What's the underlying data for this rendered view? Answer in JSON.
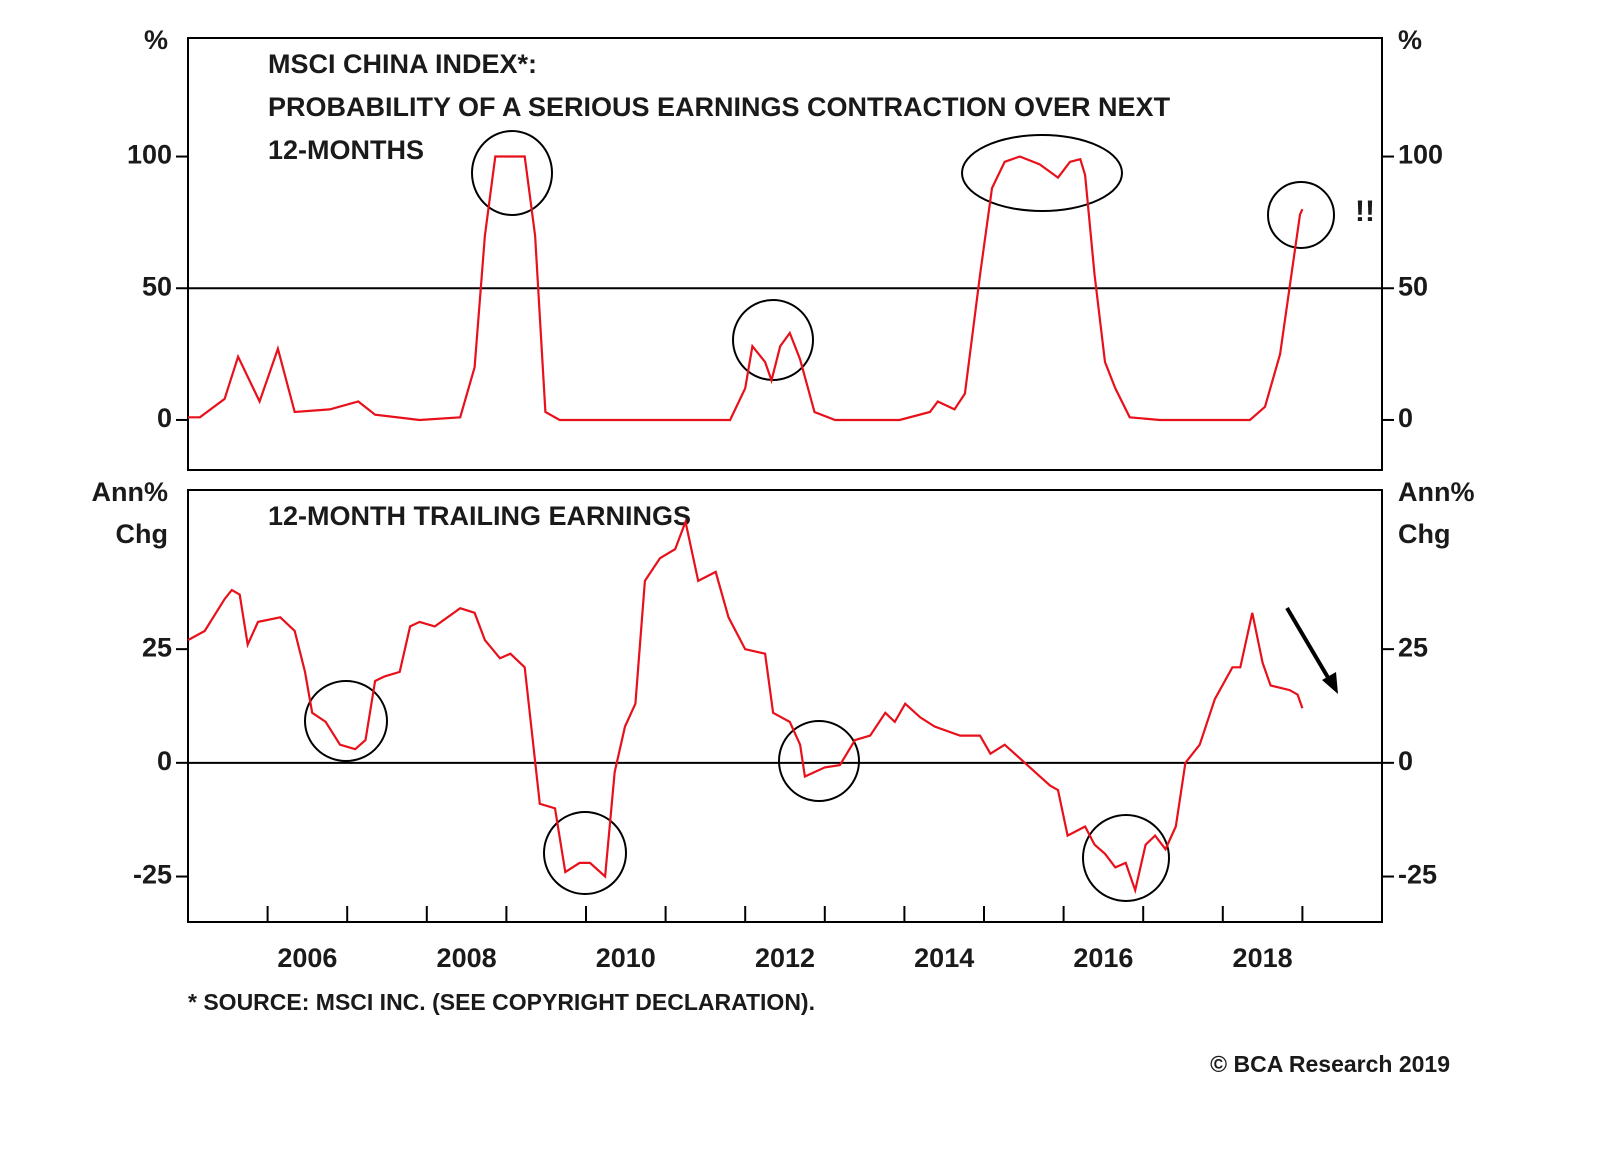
{
  "chart_data": [
    {
      "type": "line",
      "title": [
        "MSCI CHINA INDEX*:",
        "PROBABILITY OF A SERIOUS EARNINGS CONTRACTION OVER NEXT",
        "12-MONTHS"
      ],
      "ylabel": "%",
      "y2label": "%",
      "annotation": "!!",
      "color": "#e8101a",
      "xlim": [
        2005,
        2020
      ],
      "ylim": [
        -19,
        145
      ],
      "yticks": [
        0,
        50,
        100
      ],
      "y2lim": [
        -19,
        145
      ],
      "y2ticks": [
        0,
        50,
        100
      ],
      "reference_line": 50,
      "x": [
        2005.0,
        2005.15,
        2005.46,
        2005.63,
        2005.9,
        2006.13,
        2006.34,
        2006.78,
        2007.14,
        2007.35,
        2007.91,
        2008.42,
        2008.6,
        2008.73,
        2008.86,
        2009.23,
        2009.36,
        2009.49,
        2009.67,
        2011.81,
        2012.0,
        2012.09,
        2012.25,
        2012.33,
        2012.44,
        2012.56,
        2012.69,
        2012.87,
        2013.13,
        2013.94,
        2014.32,
        2014.42,
        2014.63,
        2014.76,
        2014.95,
        2015.1,
        2015.26,
        2015.45,
        2015.7,
        2015.93,
        2016.08,
        2016.21,
        2016.27,
        2016.39,
        2016.52,
        2016.65,
        2016.83,
        2017.21,
        2018.34,
        2018.53,
        2018.72,
        2018.87,
        2018.97,
        2019.0
      ],
      "values": [
        1,
        1,
        8,
        24,
        7,
        27,
        3,
        4,
        7,
        2,
        0,
        1,
        20,
        70,
        100,
        100,
        70,
        3,
        0,
        0,
        12,
        28,
        22,
        15,
        28,
        33,
        23,
        3,
        0,
        0,
        3,
        7,
        4,
        10,
        55,
        88,
        98,
        100,
        97,
        92,
        98,
        99,
        93,
        55,
        22,
        12,
        1,
        0,
        0,
        5,
        25,
        57,
        78,
        80
      ]
    },
    {
      "type": "line",
      "title": [
        "12-MONTH TRAILING EARNINGS"
      ],
      "ylabel": [
        "Ann%",
        "Chg"
      ],
      "y2label": [
        "Ann%",
        "Chg"
      ],
      "color": "#e8101a",
      "xlim": [
        2005,
        2020
      ],
      "xminorticks": [
        2006,
        2007,
        2008,
        2009,
        2010,
        2011,
        2012,
        2013,
        2014,
        2015,
        2016,
        2017,
        2018,
        2019
      ],
      "xticks": [
        {
          "value": 2006.5,
          "label": "2006"
        },
        {
          "value": 2008.5,
          "label": "2008"
        },
        {
          "value": 2010.5,
          "label": "2010"
        },
        {
          "value": 2012.5,
          "label": "2012"
        },
        {
          "value": 2014.5,
          "label": "2014"
        },
        {
          "value": 2016.5,
          "label": "2016"
        },
        {
          "value": 2018.5,
          "label": "2018"
        }
      ],
      "ylim": [
        -35,
        60
      ],
      "yticks": [
        -25,
        0,
        25
      ],
      "y2lim": [
        -35,
        60
      ],
      "y2ticks": [
        -25,
        0,
        25
      ],
      "reference_line": 0,
      "x": [
        2005.0,
        2005.21,
        2005.46,
        2005.55,
        2005.65,
        2005.75,
        2005.88,
        2006.16,
        2006.34,
        2006.47,
        2006.56,
        2006.73,
        2006.91,
        2007.1,
        2007.23,
        2007.35,
        2007.47,
        2007.66,
        2007.79,
        2007.91,
        2008.1,
        2008.42,
        2008.6,
        2008.73,
        2008.92,
        2009.05,
        2009.23,
        2009.42,
        2009.61,
        2009.74,
        2009.92,
        2010.05,
        2010.24,
        2010.36,
        2010.49,
        2010.62,
        2010.74,
        2010.93,
        2011.12,
        2011.25,
        2011.41,
        2011.63,
        2011.79,
        2012.0,
        2012.25,
        2012.35,
        2012.56,
        2012.69,
        2012.75,
        2013.0,
        2013.19,
        2013.38,
        2013.57,
        2013.76,
        2013.88,
        2014.01,
        2014.2,
        2014.38,
        2014.7,
        2014.95,
        2015.08,
        2015.26,
        2015.45,
        2015.64,
        2015.83,
        2015.93,
        2016.05,
        2016.27,
        2016.39,
        2016.52,
        2016.65,
        2016.78,
        2016.9,
        2017.03,
        2017.15,
        2017.28,
        2017.41,
        2017.53,
        2017.71,
        2017.9,
        2018.12,
        2018.22,
        2018.37,
        2018.5,
        2018.6,
        2018.84,
        2018.94,
        2019.0
      ],
      "values": [
        27,
        29,
        36,
        38,
        37,
        26,
        31,
        32,
        29,
        20,
        11,
        9,
        4,
        3,
        5,
        18,
        19,
        20,
        30,
        31,
        30,
        34,
        33,
        27,
        23,
        24,
        21,
        -9,
        -10,
        -24,
        -22,
        -22,
        -25,
        -2,
        8,
        13,
        40,
        45,
        47,
        53,
        40,
        42,
        32,
        25,
        24,
        11,
        9,
        4,
        -3,
        -1,
        -0.5,
        5,
        6,
        11,
        9,
        13,
        10,
        8,
        6,
        6,
        2,
        4,
        1,
        -2,
        -5,
        -6,
        -16,
        -14,
        -18,
        -20,
        -23,
        -22,
        -28,
        -18,
        -16,
        -19,
        -14,
        0,
        4,
        14,
        21,
        21,
        33,
        22,
        17,
        16,
        15,
        12
      ]
    }
  ],
  "footnote": "* SOURCE: MSCI INC. (SEE COPYRIGHT DECLARATION).",
  "credit": "© BCA Research 2019"
}
